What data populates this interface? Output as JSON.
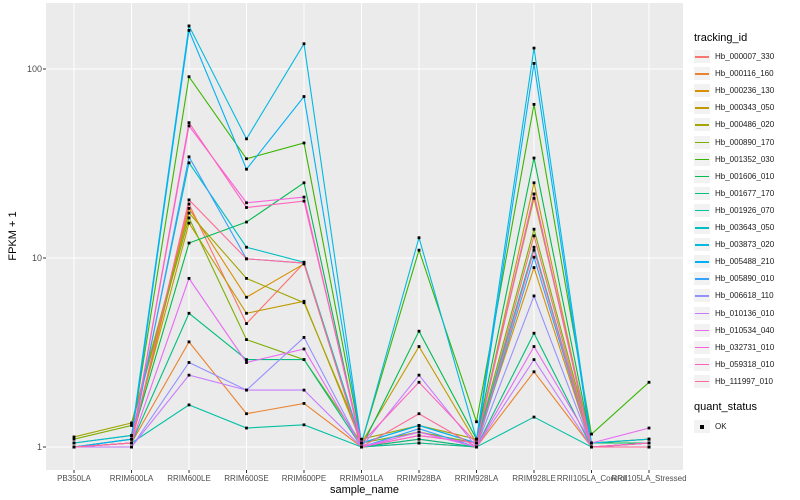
{
  "figure": {
    "y_axis": {
      "label": "FPKM + 1",
      "tick_labels": [
        "100",
        "10",
        "1"
      ],
      "tick_values": [
        100,
        10,
        1
      ]
    },
    "x_axis": {
      "label": "sample_name"
    },
    "legend": {
      "tracking_title": "tracking_id",
      "quant_title": "quant_status",
      "quant_item": "OK"
    },
    "colors": {
      "panel_background": "#EBEBEB",
      "grid": "#FFFFFF",
      "axis_text": "#4D4D4D",
      "text": "#000000",
      "legend_key": "#F2F2F2",
      "marker": "#000000"
    }
  },
  "chart_data": {
    "type": "line",
    "title": "",
    "xlabel": "sample_name",
    "ylabel": "FPKM + 1",
    "yscale": "log10",
    "yticks": [
      1,
      10,
      100
    ],
    "ylim": [
      0.93,
      215
    ],
    "grid": true,
    "legend_position": "right",
    "marker": "black-square",
    "x": [
      "PB350LA",
      "RRIM600LA",
      "RRIM600LE",
      "RRIM600SE",
      "RRIM600PE",
      "RRIM901LA",
      "RRIM928BA",
      "RRIM928LA",
      "RRIM928LE",
      "RRII105LA_Control",
      "RRII105LA_Stressed"
    ],
    "series": [
      {
        "name": "Hb_000007_330",
        "color": "#F8766D",
        "values": [
          1.0,
          1.05,
          19.3,
          4.5,
          9.4,
          1.0,
          1.1,
          1.0,
          13.1,
          1.0,
          1.0
        ]
      },
      {
        "name": "Hb_000116_160",
        "color": "#EA8331",
        "values": [
          1.0,
          1.05,
          3.6,
          1.5,
          1.7,
          1.0,
          1.05,
          1.0,
          2.5,
          1.0,
          1.05
        ]
      },
      {
        "name": "Hb_000236_130",
        "color": "#D89000",
        "values": [
          1.0,
          1.05,
          18.3,
          6.2,
          9.3,
          1.0,
          1.15,
          1.05,
          8.9,
          1.0,
          1.0
        ]
      },
      {
        "name": "Hb_000343_050",
        "color": "#C09B00",
        "values": [
          1.0,
          1.1,
          15.3,
          5.1,
          5.9,
          1.05,
          3.4,
          1.05,
          25.0,
          1.0,
          1.05
        ]
      },
      {
        "name": "Hb_000486_020",
        "color": "#A3A500",
        "values": [
          1.13,
          1.34,
          17.3,
          7.8,
          5.8,
          1.1,
          1.3,
          1.1,
          20.7,
          1.05,
          1.1
        ]
      },
      {
        "name": "Hb_000890_170",
        "color": "#7CAE00",
        "values": [
          1.1,
          1.3,
          16.3,
          3.7,
          2.9,
          1.05,
          1.2,
          1.05,
          14.2,
          1.05,
          1.1
        ]
      },
      {
        "name": "Hb_001352_030",
        "color": "#39B600",
        "values": [
          1.05,
          1.15,
          91.0,
          33.5,
          40.6,
          1.05,
          11.0,
          1.36,
          65.0,
          1.17,
          2.2
        ]
      },
      {
        "name": "Hb_001606_010",
        "color": "#00BB4E",
        "values": [
          1.0,
          1.1,
          12.0,
          15.5,
          25.0,
          1.0,
          4.1,
          1.1,
          33.8,
          1.05,
          1.05
        ]
      },
      {
        "name": "Hb_001677_170",
        "color": "#00BF7D",
        "values": [
          1.0,
          1.05,
          5.1,
          2.9,
          2.9,
          1.0,
          1.1,
          1.0,
          4.0,
          1.0,
          1.0
        ]
      },
      {
        "name": "Hb_001926_070",
        "color": "#00C1A3",
        "values": [
          1.0,
          1.05,
          1.67,
          1.26,
          1.31,
          1.0,
          1.05,
          1.0,
          1.44,
          1.0,
          1.0
        ]
      },
      {
        "name": "Hb_003643_050",
        "color": "#00BFC4",
        "values": [
          1.0,
          1.1,
          31.9,
          11.4,
          9.5,
          1.05,
          1.3,
          1.05,
          11.4,
          1.0,
          1.05
        ]
      },
      {
        "name": "Hb_003873_020",
        "color": "#00BAE0",
        "values": [
          1.05,
          1.15,
          169.0,
          42.7,
          136.0,
          1.05,
          12.8,
          1.1,
          129.0,
          1.05,
          1.1
        ]
      },
      {
        "name": "Hb_005488_210",
        "color": "#00B0F6",
        "values": [
          1.0,
          1.1,
          160.0,
          29.5,
          71.5,
          1.05,
          1.3,
          1.05,
          107.0,
          1.0,
          1.05
        ]
      },
      {
        "name": "Hb_005890_010",
        "color": "#35A2FF",
        "values": [
          1.0,
          1.05,
          34.3,
          9.9,
          9.4,
          1.0,
          1.25,
          1.0,
          10.1,
          1.0,
          1.0
        ]
      },
      {
        "name": "Hb_006618_110",
        "color": "#9590FF",
        "values": [
          1.0,
          1.0,
          2.8,
          2.0,
          3.8,
          1.0,
          1.2,
          1.0,
          6.3,
          1.0,
          1.0
        ]
      },
      {
        "name": "Hb_010136_010",
        "color": "#C77CFF",
        "values": [
          1.0,
          1.0,
          2.4,
          2.0,
          2.0,
          1.0,
          2.4,
          1.0,
          2.9,
          1.0,
          1.0
        ]
      },
      {
        "name": "Hb_010534_040",
        "color": "#E76BF3",
        "values": [
          1.0,
          1.05,
          7.8,
          2.8,
          3.3,
          1.0,
          1.2,
          1.0,
          3.4,
          1.05,
          1.26
        ]
      },
      {
        "name": "Hb_032731_010",
        "color": "#FA62DB",
        "values": [
          1.0,
          1.05,
          50.0,
          19.6,
          21.0,
          1.0,
          1.15,
          1.05,
          21.8,
          1.0,
          1.05
        ]
      },
      {
        "name": "Hb_059318_010",
        "color": "#FF62BC",
        "values": [
          1.0,
          1.05,
          52.0,
          18.5,
          20.0,
          1.05,
          2.2,
          1.05,
          21.8,
          1.0,
          1.05
        ]
      },
      {
        "name": "Hb_111997_010",
        "color": "#FF6A98",
        "values": [
          1.0,
          1.05,
          20.3,
          9.9,
          9.4,
          1.0,
          1.5,
          1.0,
          11.0,
          1.0,
          1.0
        ]
      }
    ]
  }
}
